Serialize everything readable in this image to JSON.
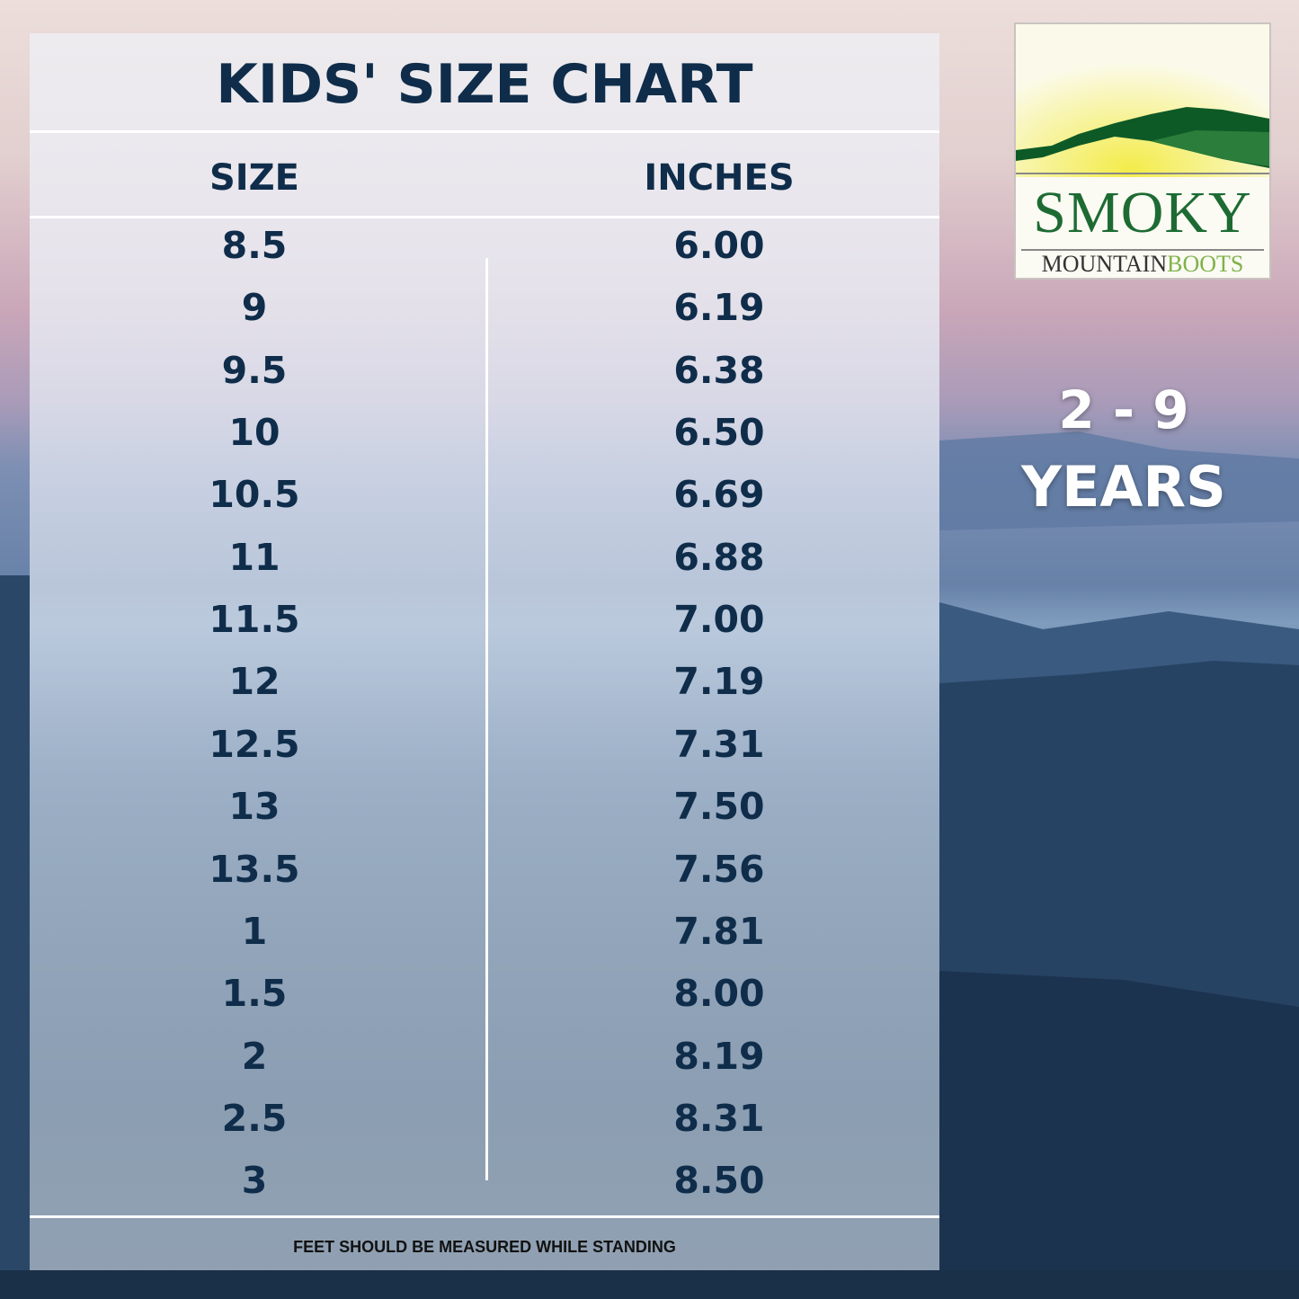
{
  "title": "KIDS' SIZE CHART",
  "columns": {
    "size": "SIZE",
    "inches": "INCHES"
  },
  "rows": [
    {
      "size": "8.5",
      "inches": "6.00"
    },
    {
      "size": "9",
      "inches": "6.19"
    },
    {
      "size": "9.5",
      "inches": "6.38"
    },
    {
      "size": "10",
      "inches": "6.50"
    },
    {
      "size": "10.5",
      "inches": "6.69"
    },
    {
      "size": "11",
      "inches": "6.88"
    },
    {
      "size": "11.5",
      "inches": "7.00"
    },
    {
      "size": "12",
      "inches": "7.19"
    },
    {
      "size": "12.5",
      "inches": "7.31"
    },
    {
      "size": "13",
      "inches": "7.50"
    },
    {
      "size": "13.5",
      "inches": "7.56"
    },
    {
      "size": "1",
      "inches": "7.81"
    },
    {
      "size": "1.5",
      "inches": "8.00"
    },
    {
      "size": "2",
      "inches": "8.19"
    },
    {
      "size": "2.5",
      "inches": "8.31"
    },
    {
      "size": "3",
      "inches": "8.50"
    }
  ],
  "footer": "FEET SHOULD BE MEASURED WHILE STANDING",
  "age_range": {
    "range": "2 - 9",
    "unit": "YEARS"
  },
  "logo": {
    "word1": "SMOKY",
    "word2": "MOUNTAIN",
    "word3": "BOOTS"
  },
  "colors": {
    "text": "#0f2d4a",
    "logo_green": "#1d6b33",
    "logo_light_green": "#7fb24a"
  }
}
